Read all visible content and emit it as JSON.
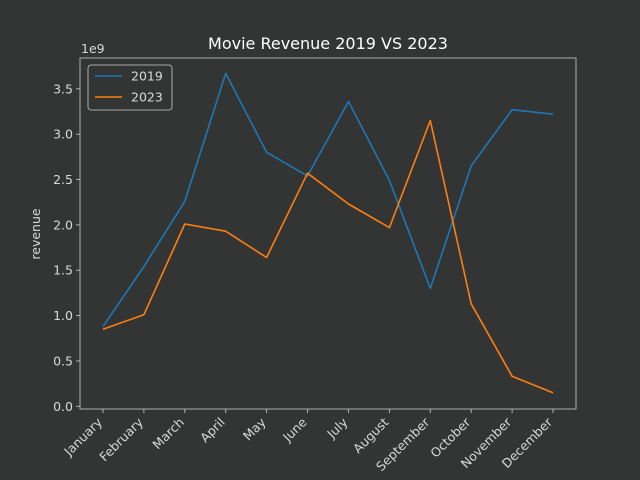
{
  "chart_data": {
    "type": "line",
    "title": "Movie Revenue 2019 VS 2023",
    "xlabel": "",
    "ylabel": "revenue",
    "y_multiplier_label": "1e9",
    "categories": [
      "January",
      "February",
      "March",
      "April",
      "May",
      "June",
      "July",
      "August",
      "September",
      "October",
      "November",
      "December"
    ],
    "series": [
      {
        "name": "2019",
        "color": "#1f77b4",
        "values": [
          0.88,
          1.54,
          2.26,
          3.67,
          2.8,
          2.54,
          3.36,
          2.49,
          1.3,
          2.65,
          3.27,
          3.22
        ]
      },
      {
        "name": "2023",
        "color": "#ff7f0e",
        "values": [
          0.85,
          1.01,
          2.01,
          1.93,
          1.64,
          2.57,
          2.23,
          1.97,
          3.15,
          1.13,
          0.33,
          0.15
        ]
      }
    ],
    "yticks": [
      "0.0",
      "0.5",
      "1.0",
      "1.5",
      "2.0",
      "2.5",
      "3.0",
      "3.5"
    ],
    "ylim": [
      -0.03,
      3.84
    ],
    "grid": false,
    "legend_position": "top-left"
  }
}
